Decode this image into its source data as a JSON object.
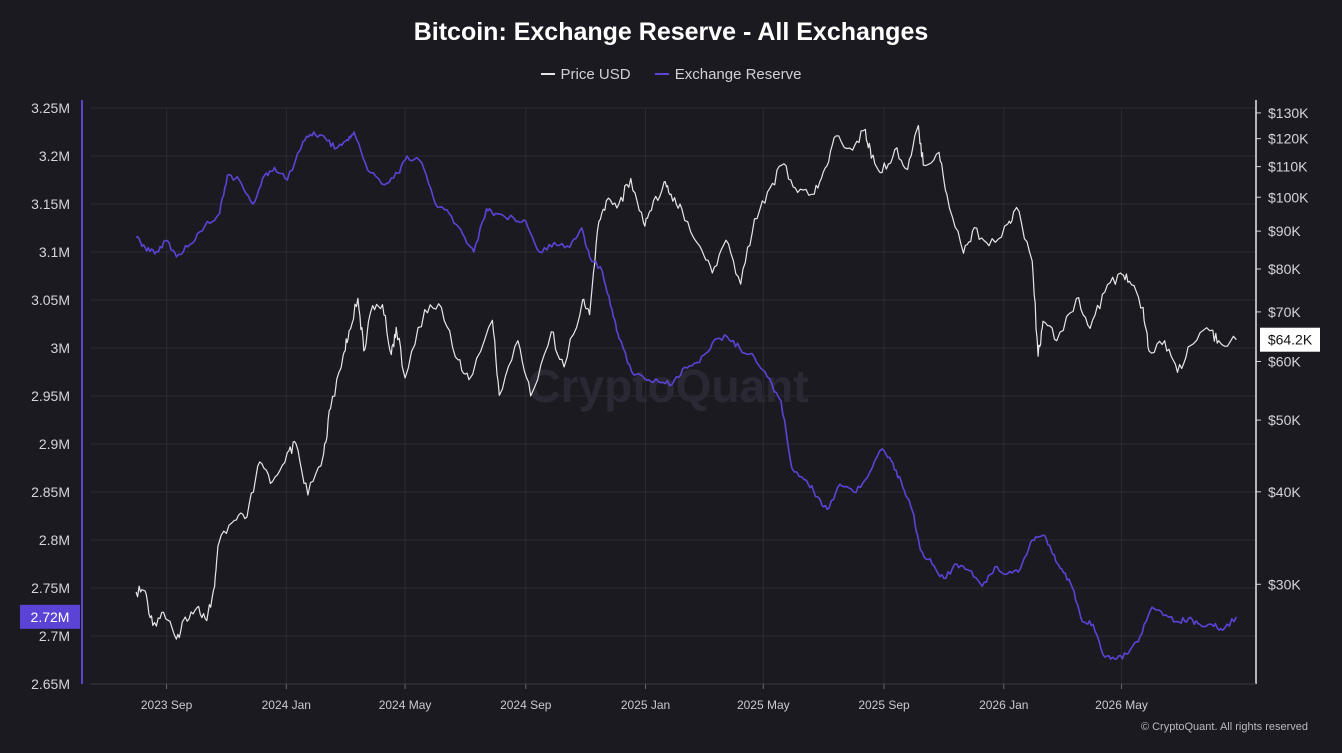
{
  "chart_data": {
    "type": "line",
    "title": "Bitcoin: Exchange Reserve - All Exchanges",
    "legend_position": "top-center",
    "grid": true,
    "watermark": "CryptoQuant",
    "copyright": "© CryptoQuant. All rights reserved",
    "x_tick_labels": [
      "2023 Sep",
      "2024 Jan",
      "2024 May",
      "2024 Sep",
      "2025 Jan",
      "2025 May",
      "2025 Sep",
      "2026 Jan",
      "2026 May"
    ],
    "x_tick_dates": [
      "2023-09-01",
      "2024-01-01",
      "2024-05-01",
      "2024-09-01",
      "2025-01-01",
      "2025-05-01",
      "2025-09-01",
      "2026-01-01",
      "2026-05-01"
    ],
    "x_range": [
      "2023-06-15",
      "2026-09-15"
    ],
    "y_left": {
      "series": "Exchange Reserve",
      "range": [
        2.65,
        3.25
      ],
      "unit": "M",
      "tick_labels": [
        "3.25M",
        "3.2M",
        "3.15M",
        "3.1M",
        "3.05M",
        "3M",
        "2.95M",
        "2.9M",
        "2.85M",
        "2.8M",
        "2.75M",
        "2.7M",
        "2.65M"
      ],
      "tick_values": [
        3.25,
        3.2,
        3.15,
        3.1,
        3.05,
        3.0,
        2.95,
        2.9,
        2.85,
        2.8,
        2.75,
        2.7,
        2.65
      ],
      "current_label": "2.72M",
      "current_value": 2.72
    },
    "y_right": {
      "series": "Price USD",
      "scale": "log",
      "range": [
        22000,
        132000
      ],
      "tick_labels": [
        "$130K",
        "$120K",
        "$110K",
        "$100K",
        "$90K",
        "$80K",
        "$70K",
        "$60K",
        "$50K",
        "$40K",
        "$30K"
      ],
      "tick_values": [
        130000,
        120000,
        110000,
        100000,
        90000,
        80000,
        70000,
        60000,
        50000,
        40000,
        30000
      ],
      "current_label": "$64.2K",
      "current_value": 64200
    },
    "series": [
      {
        "name": "Price USD",
        "axis": "right",
        "color": "#e6e6ea",
        "points": [
          [
            "2023-08-01",
            29300
          ],
          [
            "2023-08-10",
            29400
          ],
          [
            "2023-08-18",
            26400
          ],
          [
            "2023-08-29",
            27500
          ],
          [
            "2023-09-11",
            25300
          ],
          [
            "2023-09-20",
            27100
          ],
          [
            "2023-10-02",
            27900
          ],
          [
            "2023-10-12",
            26800
          ],
          [
            "2023-10-20",
            29800
          ],
          [
            "2023-10-24",
            34000
          ],
          [
            "2023-11-09",
            36600
          ],
          [
            "2023-11-22",
            37000
          ],
          [
            "2023-12-05",
            43900
          ],
          [
            "2023-12-18",
            41300
          ],
          [
            "2024-01-02",
            45200
          ],
          [
            "2024-01-11",
            46400
          ],
          [
            "2024-01-23",
            39600
          ],
          [
            "2024-02-08",
            45000
          ],
          [
            "2024-02-15",
            51800
          ],
          [
            "2024-02-28",
            61200
          ],
          [
            "2024-03-05",
            66000
          ],
          [
            "2024-03-14",
            73000
          ],
          [
            "2024-03-20",
            62000
          ],
          [
            "2024-03-27",
            70000
          ],
          [
            "2024-04-08",
            71600
          ],
          [
            "2024-04-17",
            61300
          ],
          [
            "2024-04-22",
            66700
          ],
          [
            "2024-05-01",
            57000
          ],
          [
            "2024-05-21",
            70500
          ],
          [
            "2024-06-07",
            71000
          ],
          [
            "2024-06-24",
            60300
          ],
          [
            "2024-07-05",
            56700
          ],
          [
            "2024-07-29",
            68200
          ],
          [
            "2024-08-05",
            54000
          ],
          [
            "2024-08-24",
            64000
          ],
          [
            "2024-09-06",
            53900
          ],
          [
            "2024-09-27",
            65800
          ],
          [
            "2024-10-10",
            59000
          ],
          [
            "2024-10-29",
            72700
          ],
          [
            "2024-11-05",
            69400
          ],
          [
            "2024-11-13",
            90000
          ],
          [
            "2024-11-22",
            98900
          ],
          [
            "2024-12-05",
            98000
          ],
          [
            "2024-12-17",
            106000
          ],
          [
            "2024-12-30",
            92300
          ],
          [
            "2025-01-07",
            96000
          ],
          [
            "2025-01-20",
            105000
          ],
          [
            "2025-01-27",
            101000
          ],
          [
            "2025-02-07",
            96500
          ],
          [
            "2025-02-25",
            86000
          ],
          [
            "2025-03-10",
            79000
          ],
          [
            "2025-03-24",
            87500
          ],
          [
            "2025-04-08",
            76300
          ],
          [
            "2025-04-22",
            93500
          ],
          [
            "2025-05-08",
            103000
          ],
          [
            "2025-05-22",
            111000
          ],
          [
            "2025-06-05",
            101500
          ],
          [
            "2025-06-22",
            101000
          ],
          [
            "2025-07-03",
            109500
          ],
          [
            "2025-07-14",
            121000
          ],
          [
            "2025-07-31",
            115800
          ],
          [
            "2025-08-13",
            123500
          ],
          [
            "2025-08-19",
            112900
          ],
          [
            "2025-08-30",
            108000
          ],
          [
            "2025-09-12",
            116000
          ],
          [
            "2025-09-25",
            109000
          ],
          [
            "2025-10-06",
            125000
          ],
          [
            "2025-10-11",
            110500
          ],
          [
            "2025-10-27",
            115000
          ],
          [
            "2025-11-04",
            101000
          ],
          [
            "2025-11-21",
            84000
          ],
          [
            "2025-12-02",
            91000
          ],
          [
            "2025-12-17",
            86000
          ],
          [
            "2026-01-05",
            92000
          ],
          [
            "2026-01-14",
            96900
          ],
          [
            "2026-01-30",
            82000
          ],
          [
            "2026-02-05",
            61000
          ],
          [
            "2026-02-10",
            68000
          ],
          [
            "2026-02-24",
            64000
          ],
          [
            "2026-03-16",
            73000
          ],
          [
            "2026-03-30",
            66500
          ],
          [
            "2026-04-14",
            74500
          ],
          [
            "2026-04-30",
            79000
          ],
          [
            "2026-05-09",
            77000
          ],
          [
            "2026-05-23",
            71000
          ],
          [
            "2026-05-29",
            62000
          ],
          [
            "2026-06-14",
            64000
          ],
          [
            "2026-06-27",
            58000
          ],
          [
            "2026-07-10",
            63000
          ],
          [
            "2026-07-30",
            66000
          ],
          [
            "2026-08-08",
            64000
          ],
          [
            "2026-08-26",
            64200
          ]
        ]
      },
      {
        "name": "Exchange Reserve",
        "axis": "left",
        "color": "#5b43d6",
        "points": [
          [
            "2023-08-01",
            3.115
          ],
          [
            "2023-08-10",
            3.105
          ],
          [
            "2023-08-20",
            3.098
          ],
          [
            "2023-08-31",
            3.112
          ],
          [
            "2023-09-11",
            3.095
          ],
          [
            "2023-09-25",
            3.108
          ],
          [
            "2023-10-10",
            3.127
          ],
          [
            "2023-10-25",
            3.14
          ],
          [
            "2023-11-02",
            3.18
          ],
          [
            "2023-11-14",
            3.175
          ],
          [
            "2023-11-28",
            3.15
          ],
          [
            "2023-12-10",
            3.18
          ],
          [
            "2023-12-20",
            3.188
          ],
          [
            "2024-01-02",
            3.175
          ],
          [
            "2024-01-18",
            3.215
          ],
          [
            "2024-01-29",
            3.225
          ],
          [
            "2024-02-10",
            3.218
          ],
          [
            "2024-02-21",
            3.208
          ],
          [
            "2024-03-03",
            3.217
          ],
          [
            "2024-03-10",
            3.225
          ],
          [
            "2024-03-24",
            3.185
          ],
          [
            "2024-04-10",
            3.17
          ],
          [
            "2024-04-24",
            3.182
          ],
          [
            "2024-05-03",
            3.2
          ],
          [
            "2024-05-18",
            3.193
          ],
          [
            "2024-06-01",
            3.15
          ],
          [
            "2024-06-15",
            3.14
          ],
          [
            "2024-06-29",
            3.118
          ],
          [
            "2024-07-10",
            3.1
          ],
          [
            "2024-07-23",
            3.145
          ],
          [
            "2024-08-01",
            3.14
          ],
          [
            "2024-08-20",
            3.135
          ],
          [
            "2024-09-01",
            3.132
          ],
          [
            "2024-09-15",
            3.1
          ],
          [
            "2024-09-30",
            3.11
          ],
          [
            "2024-10-16",
            3.105
          ],
          [
            "2024-10-28",
            3.125
          ],
          [
            "2024-11-05",
            3.095
          ],
          [
            "2024-11-18",
            3.08
          ],
          [
            "2024-11-28",
            3.04
          ],
          [
            "2024-12-05",
            3.01
          ],
          [
            "2024-12-18",
            2.975
          ],
          [
            "2024-12-31",
            2.968
          ],
          [
            "2025-01-14",
            2.965
          ],
          [
            "2025-01-28",
            2.962
          ],
          [
            "2025-02-10",
            2.98
          ],
          [
            "2025-02-25",
            2.985
          ],
          [
            "2025-03-10",
            3.005
          ],
          [
            "2025-03-25",
            3.012
          ],
          [
            "2025-04-07",
            3.0
          ],
          [
            "2025-04-22",
            2.99
          ],
          [
            "2025-05-05",
            2.97
          ],
          [
            "2025-05-19",
            2.945
          ],
          [
            "2025-05-30",
            2.875
          ],
          [
            "2025-06-14",
            2.862
          ],
          [
            "2025-06-25",
            2.845
          ],
          [
            "2025-07-05",
            2.832
          ],
          [
            "2025-07-18",
            2.858
          ],
          [
            "2025-08-01",
            2.85
          ],
          [
            "2025-08-15",
            2.865
          ],
          [
            "2025-08-30",
            2.895
          ],
          [
            "2025-09-10",
            2.88
          ],
          [
            "2025-09-20",
            2.855
          ],
          [
            "2025-09-30",
            2.83
          ],
          [
            "2025-10-08",
            2.79
          ],
          [
            "2025-10-20",
            2.775
          ],
          [
            "2025-11-01",
            2.76
          ],
          [
            "2025-11-14",
            2.775
          ],
          [
            "2025-11-27",
            2.768
          ],
          [
            "2025-12-10",
            2.752
          ],
          [
            "2025-12-23",
            2.772
          ],
          [
            "2026-01-05",
            2.765
          ],
          [
            "2026-01-18",
            2.77
          ],
          [
            "2026-01-30",
            2.8
          ],
          [
            "2026-02-10",
            2.805
          ],
          [
            "2026-02-20",
            2.785
          ],
          [
            "2026-03-01",
            2.77
          ],
          [
            "2026-03-12",
            2.75
          ],
          [
            "2026-03-22",
            2.715
          ],
          [
            "2026-04-02",
            2.712
          ],
          [
            "2026-04-14",
            2.678
          ],
          [
            "2026-04-26",
            2.676
          ],
          [
            "2026-05-08",
            2.682
          ],
          [
            "2026-05-20",
            2.7
          ],
          [
            "2026-06-01",
            2.73
          ],
          [
            "2026-06-15",
            2.722
          ],
          [
            "2026-06-27",
            2.715
          ],
          [
            "2026-07-08",
            2.718
          ],
          [
            "2026-07-20",
            2.712
          ],
          [
            "2026-08-01",
            2.712
          ],
          [
            "2026-08-12",
            2.706
          ],
          [
            "2026-08-26",
            2.72
          ]
        ]
      }
    ]
  }
}
